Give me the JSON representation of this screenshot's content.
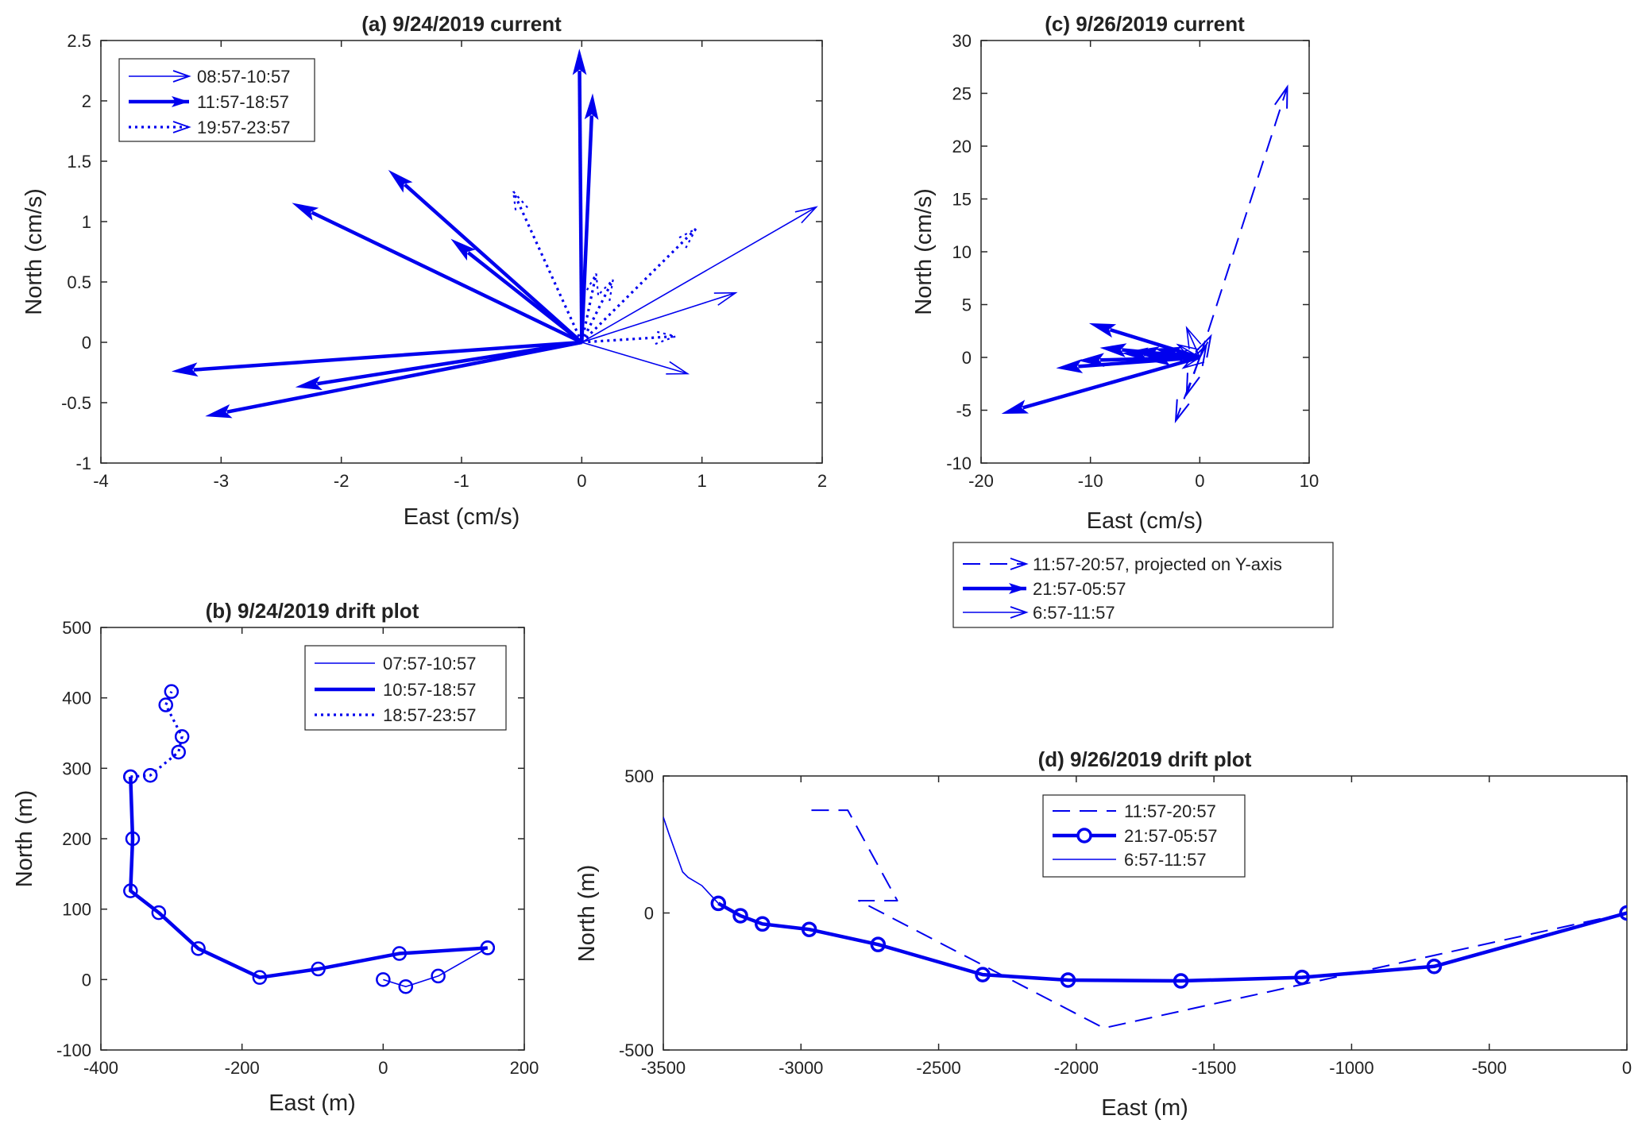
{
  "figure": {
    "accent_color": "#0000ee",
    "axis_color": "#262626"
  },
  "chart_data": [
    {
      "id": "a",
      "type": "quiver",
      "title": "(a) 9/24/2019 current",
      "xlabel": "East (cm/s)",
      "ylabel": "North (cm/s)",
      "xlim": [
        -4,
        2
      ],
      "ylim": [
        -1,
        2.5
      ],
      "xticks": [
        "-4",
        "-3",
        "-2",
        "-1",
        "0",
        "1",
        "2"
      ],
      "yticks": [
        "-1",
        "-0.5",
        "0",
        "0.5",
        "1",
        "1.5",
        "2",
        "2.5"
      ],
      "legend_position": "top-left",
      "series": [
        {
          "name": "08:57-10:57",
          "style": "thin",
          "vectors": [
            [
              1.95,
              1.12
            ],
            [
              1.28,
              0.41
            ],
            [
              0.88,
              -0.26
            ]
          ]
        },
        {
          "name": "11:57-18:57",
          "style": "thick",
          "vectors": [
            [
              -3.4,
              -0.24
            ],
            [
              -2.37,
              -0.37
            ],
            [
              -3.12,
              -0.61
            ],
            [
              -2.4,
              1.15
            ],
            [
              -1.6,
              1.42
            ],
            [
              -1.08,
              0.85
            ],
            [
              -0.02,
              2.42
            ],
            [
              0.09,
              2.05
            ]
          ]
        },
        {
          "name": "19:57-23:57",
          "style": "dotted",
          "vectors": [
            [
              -0.57,
              1.25
            ],
            [
              0.95,
              0.94
            ],
            [
              0.12,
              0.57
            ],
            [
              0.26,
              0.52
            ],
            [
              0.78,
              0.05
            ]
          ]
        }
      ]
    },
    {
      "id": "b",
      "type": "line",
      "title": "(b) 9/24/2019 drift plot",
      "xlabel": "East (m)",
      "ylabel": "North (m)",
      "xlim": [
        -400,
        200
      ],
      "ylim": [
        -100,
        500
      ],
      "xticks": [
        "-400",
        "-200",
        "0",
        "200"
      ],
      "yticks": [
        "-100",
        "0",
        "100",
        "200",
        "300",
        "400",
        "500"
      ],
      "legend_position": "top-right",
      "series": [
        {
          "name": "07:57-10:57",
          "style": "thin",
          "x": [
            0,
            32,
            78,
            148
          ],
          "y": [
            0,
            -10,
            5,
            45
          ]
        },
        {
          "name": "10:57-18:57",
          "style": "thick",
          "x": [
            148,
            23,
            -92,
            -175,
            -262,
            -318,
            -358,
            -355,
            -358
          ],
          "y": [
            45,
            37,
            15,
            3,
            44,
            95,
            126,
            200,
            288
          ]
        },
        {
          "name": "18:57-23:57",
          "style": "dotted",
          "x": [
            -358,
            -330,
            -290,
            -285,
            -308,
            -300
          ],
          "y": [
            288,
            290,
            323,
            345,
            390,
            409
          ]
        }
      ]
    },
    {
      "id": "c",
      "type": "quiver",
      "title": "(c) 9/26/2019 current",
      "xlabel": "East (cm/s)",
      "ylabel": "North (cm/s)",
      "xlim": [
        -20,
        10
      ],
      "ylim": [
        -10,
        30
      ],
      "xticks": [
        "-20",
        "-10",
        "0",
        "10"
      ],
      "yticks": [
        "-10",
        "-5",
        "0",
        "5",
        "10",
        "15",
        "20",
        "25",
        "30"
      ],
      "legend_position": "bottom-outside",
      "series": [
        {
          "name": "11:57-20:57, projected on Y-axis",
          "style": "dashed",
          "vectors": [
            [
              8,
              25.6
            ],
            [
              -2.2,
              -6
            ],
            [
              1,
              2
            ],
            [
              -1.2,
              -3.5
            ],
            [
              0.6,
              1.2
            ]
          ]
        },
        {
          "name": "21:57-05:57",
          "style": "thick",
          "vectors": [
            [
              -18,
              -5.3
            ],
            [
              -10,
              3.2
            ],
            [
              -13,
              -1
            ],
            [
              -11,
              -0.3
            ],
            [
              -9,
              0.9
            ],
            [
              -7,
              0.4
            ],
            [
              -6,
              0.6
            ],
            [
              -5,
              -0.2
            ],
            [
              -4,
              0.8
            ]
          ]
        },
        {
          "name": "6:57-11:57",
          "style": "thin",
          "vectors": [
            [
              -1.2,
              2.8
            ],
            [
              -2,
              1.2
            ],
            [
              -3,
              0.2
            ],
            [
              -1.5,
              -1
            ]
          ]
        }
      ]
    },
    {
      "id": "d",
      "type": "line",
      "title": "(d) 9/26/2019 drift plot",
      "xlabel": "East (m)",
      "ylabel": "North (m)",
      "xlim": [
        -3500,
        0
      ],
      "ylim": [
        -500,
        500
      ],
      "xticks": [
        "-3500",
        "-3000",
        "-2500",
        "-2000",
        "-1500",
        "-1000",
        "-500",
        "0"
      ],
      "yticks": [
        "-500",
        "0",
        "500"
      ],
      "legend_position": "top-center",
      "series": [
        {
          "name": "11:57-20:57",
          "style": "dashed",
          "x": [
            0,
            -1900,
            -2790,
            -2650,
            -2830,
            -2970
          ],
          "y": [
            0,
            -420,
            45,
            45,
            375,
            375
          ]
        },
        {
          "name": "21:57-05:57",
          "style": "thick-marker",
          "x": [
            0,
            -700,
            -1180,
            -1620,
            -2030,
            -2340,
            -2720,
            -2970,
            -3140,
            -3220,
            -3300
          ],
          "y": [
            0,
            -195,
            -235,
            -248,
            -245,
            -225,
            -115,
            -60,
            -40,
            -10,
            35
          ]
        },
        {
          "name": "6:57-11:57",
          "style": "thin",
          "x": [
            -3300,
            -3360,
            -3410,
            -3430,
            -3480,
            -3500
          ],
          "y": [
            35,
            100,
            130,
            150,
            290,
            350
          ]
        }
      ]
    }
  ]
}
